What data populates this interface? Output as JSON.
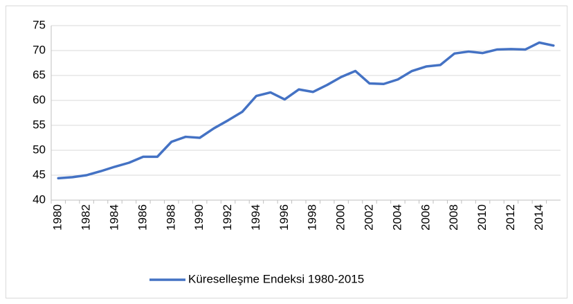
{
  "chart_data": {
    "type": "line",
    "categories": [
      "1980",
      null,
      "1982",
      null,
      "1984",
      null,
      "1986",
      null,
      "1988",
      null,
      "1990",
      null,
      "1992",
      null,
      "1994",
      null,
      "1996",
      null,
      "1998",
      null,
      "2000",
      null,
      "2002",
      null,
      "2004",
      null,
      "2006",
      null,
      "2008",
      null,
      "2010",
      null,
      "2012",
      null,
      "2014",
      null
    ],
    "series": [
      {
        "name": "Küreselleşme Endeksi 1980-2015",
        "color": "#4472c4",
        "values": [
          44.4,
          44.6,
          45.0,
          45.8,
          46.7,
          47.5,
          48.7,
          48.7,
          51.7,
          52.7,
          52.5,
          54.4,
          56.0,
          57.7,
          60.9,
          61.6,
          60.2,
          62.2,
          61.7,
          63.1,
          64.7,
          65.9,
          63.4,
          63.3,
          64.2,
          65.9,
          66.8,
          67.1,
          69.4,
          69.8,
          69.5,
          70.2,
          70.3,
          70.2,
          71.6,
          71.0
        ]
      }
    ],
    "ylim": [
      40,
      75
    ],
    "yticks": [
      40,
      45,
      50,
      55,
      60,
      65,
      70,
      75
    ],
    "grid": true,
    "legend": "bottom"
  }
}
